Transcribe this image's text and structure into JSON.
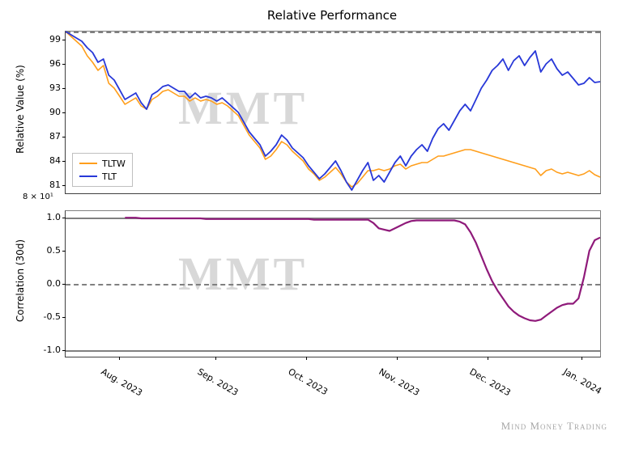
{
  "title": "Relative Performance",
  "watermark": "MMT",
  "attribution": "Mind Money Trading",
  "top_panel": {
    "ylabel": "Relative Value (%)",
    "yticks": [
      81,
      84,
      87,
      90,
      93,
      96,
      99
    ],
    "ylim": [
      80,
      100
    ],
    "exp_label": "8 × 10¹",
    "dashed_ref": 100,
    "legend": [
      {
        "label": "TLTW",
        "color": "#ff9e1b"
      },
      {
        "label": "TLT",
        "color": "#2838d8"
      }
    ],
    "series": {
      "TLTW": {
        "color": "#ff9e1b",
        "line_width": 1.6,
        "y": [
          100,
          99.4,
          98.8,
          98.2,
          97.0,
          96.2,
          95.2,
          95.8,
          93.6,
          93.0,
          92.0,
          91.0,
          91.4,
          91.8,
          90.8,
          90.4,
          91.6,
          92.0,
          92.6,
          92.8,
          92.4,
          92.0,
          92.0,
          91.4,
          91.8,
          91.4,
          91.6,
          91.4,
          91.0,
          91.2,
          90.8,
          90.2,
          89.6,
          88.4,
          87.2,
          86.4,
          85.6,
          84.2,
          84.6,
          85.4,
          86.4,
          86.0,
          85.2,
          84.6,
          84.0,
          83.0,
          82.4,
          81.6,
          82.0,
          82.6,
          83.2,
          82.4,
          81.4,
          80.8,
          81.2,
          82.0,
          82.8,
          82.8,
          83.0,
          82.8,
          83.0,
          83.4,
          83.6,
          83.0,
          83.4,
          83.6,
          83.8,
          83.8,
          84.2,
          84.6,
          84.6,
          84.8,
          85.0,
          85.2,
          85.4,
          85.4,
          85.2,
          85.0,
          84.8,
          84.6,
          84.4,
          84.2,
          84.0,
          83.8,
          83.6,
          83.4,
          83.2,
          83.0,
          82.2,
          82.8,
          83.0,
          82.6,
          82.4,
          82.6,
          82.4,
          82.2,
          82.4,
          82.8,
          82.3,
          82.0
        ]
      },
      "TLT": {
        "color": "#2838d8",
        "line_width": 1.8,
        "y": [
          100,
          99.6,
          99.2,
          98.8,
          98.0,
          97.4,
          96.2,
          96.6,
          94.6,
          94.0,
          92.8,
          91.6,
          92.0,
          92.4,
          91.2,
          90.4,
          92.2,
          92.6,
          93.2,
          93.4,
          93.0,
          92.6,
          92.6,
          91.8,
          92.4,
          91.8,
          92.0,
          91.8,
          91.4,
          91.8,
          91.2,
          90.6,
          90.0,
          88.8,
          87.6,
          86.8,
          86.0,
          84.6,
          85.2,
          86.0,
          87.2,
          86.6,
          85.6,
          85.0,
          84.4,
          83.4,
          82.6,
          81.8,
          82.4,
          83.2,
          84.0,
          82.8,
          81.4,
          80.4,
          81.6,
          82.8,
          83.8,
          81.6,
          82.2,
          81.4,
          82.6,
          83.8,
          84.6,
          83.4,
          84.6,
          85.4,
          86.0,
          85.2,
          86.8,
          88.0,
          88.6,
          87.8,
          89.0,
          90.2,
          91.0,
          90.2,
          91.6,
          93.0,
          94.0,
          95.2,
          95.8,
          96.6,
          95.2,
          96.4,
          97.0,
          95.8,
          96.8,
          97.6,
          95.0,
          96.0,
          96.6,
          95.4,
          94.6,
          95.0,
          94.2,
          93.4,
          93.6,
          94.3,
          93.7,
          93.8
        ]
      }
    }
  },
  "bottom_panel": {
    "ylabel": "Correlation (30d)",
    "yticks": [
      -1.0,
      -0.5,
      0.0,
      0.5,
      1.0
    ],
    "ylim": [
      -1.1,
      1.1
    ],
    "solid_refs": [
      1.0,
      -1.0
    ],
    "dashed_ref": 0.0,
    "series": {
      "corr": {
        "color": "#8f1a7a",
        "line_width": 2.2,
        "y": [
          null,
          null,
          null,
          null,
          null,
          null,
          null,
          null,
          null,
          null,
          null,
          1.0,
          1.0,
          1.0,
          0.99,
          0.99,
          0.99,
          0.99,
          0.99,
          0.99,
          0.99,
          0.99,
          0.99,
          0.99,
          0.99,
          0.99,
          0.98,
          0.98,
          0.98,
          0.98,
          0.98,
          0.98,
          0.98,
          0.98,
          0.98,
          0.98,
          0.98,
          0.98,
          0.98,
          0.98,
          0.98,
          0.98,
          0.98,
          0.98,
          0.98,
          0.98,
          0.97,
          0.97,
          0.97,
          0.97,
          0.97,
          0.97,
          0.97,
          0.97,
          0.97,
          0.97,
          0.97,
          0.92,
          0.84,
          0.82,
          0.8,
          0.84,
          0.88,
          0.92,
          0.95,
          0.96,
          0.96,
          0.96,
          0.96,
          0.96,
          0.96,
          0.96,
          0.96,
          0.94,
          0.9,
          0.78,
          0.62,
          0.42,
          0.22,
          0.04,
          -0.1,
          -0.22,
          -0.34,
          -0.42,
          -0.48,
          -0.52,
          -0.55,
          -0.56,
          -0.54,
          -0.48,
          -0.42,
          -0.36,
          -0.32,
          -0.3,
          -0.3,
          -0.22,
          0.1,
          0.5,
          0.66,
          0.7
        ]
      }
    }
  },
  "xaxis": {
    "ticks": [
      {
        "pos": 0.1,
        "label": "Aug. 2023"
      },
      {
        "pos": 0.28,
        "label": "Sep. 2023"
      },
      {
        "pos": 0.45,
        "label": "Oct. 2023"
      },
      {
        "pos": 0.62,
        "label": "Nov. 2023"
      },
      {
        "pos": 0.79,
        "label": "Dec. 2023"
      },
      {
        "pos": 0.965,
        "label": "Jan. 2024"
      }
    ]
  },
  "colors": {
    "background": "#ffffff",
    "grid": "#808080",
    "text": "#000000"
  }
}
